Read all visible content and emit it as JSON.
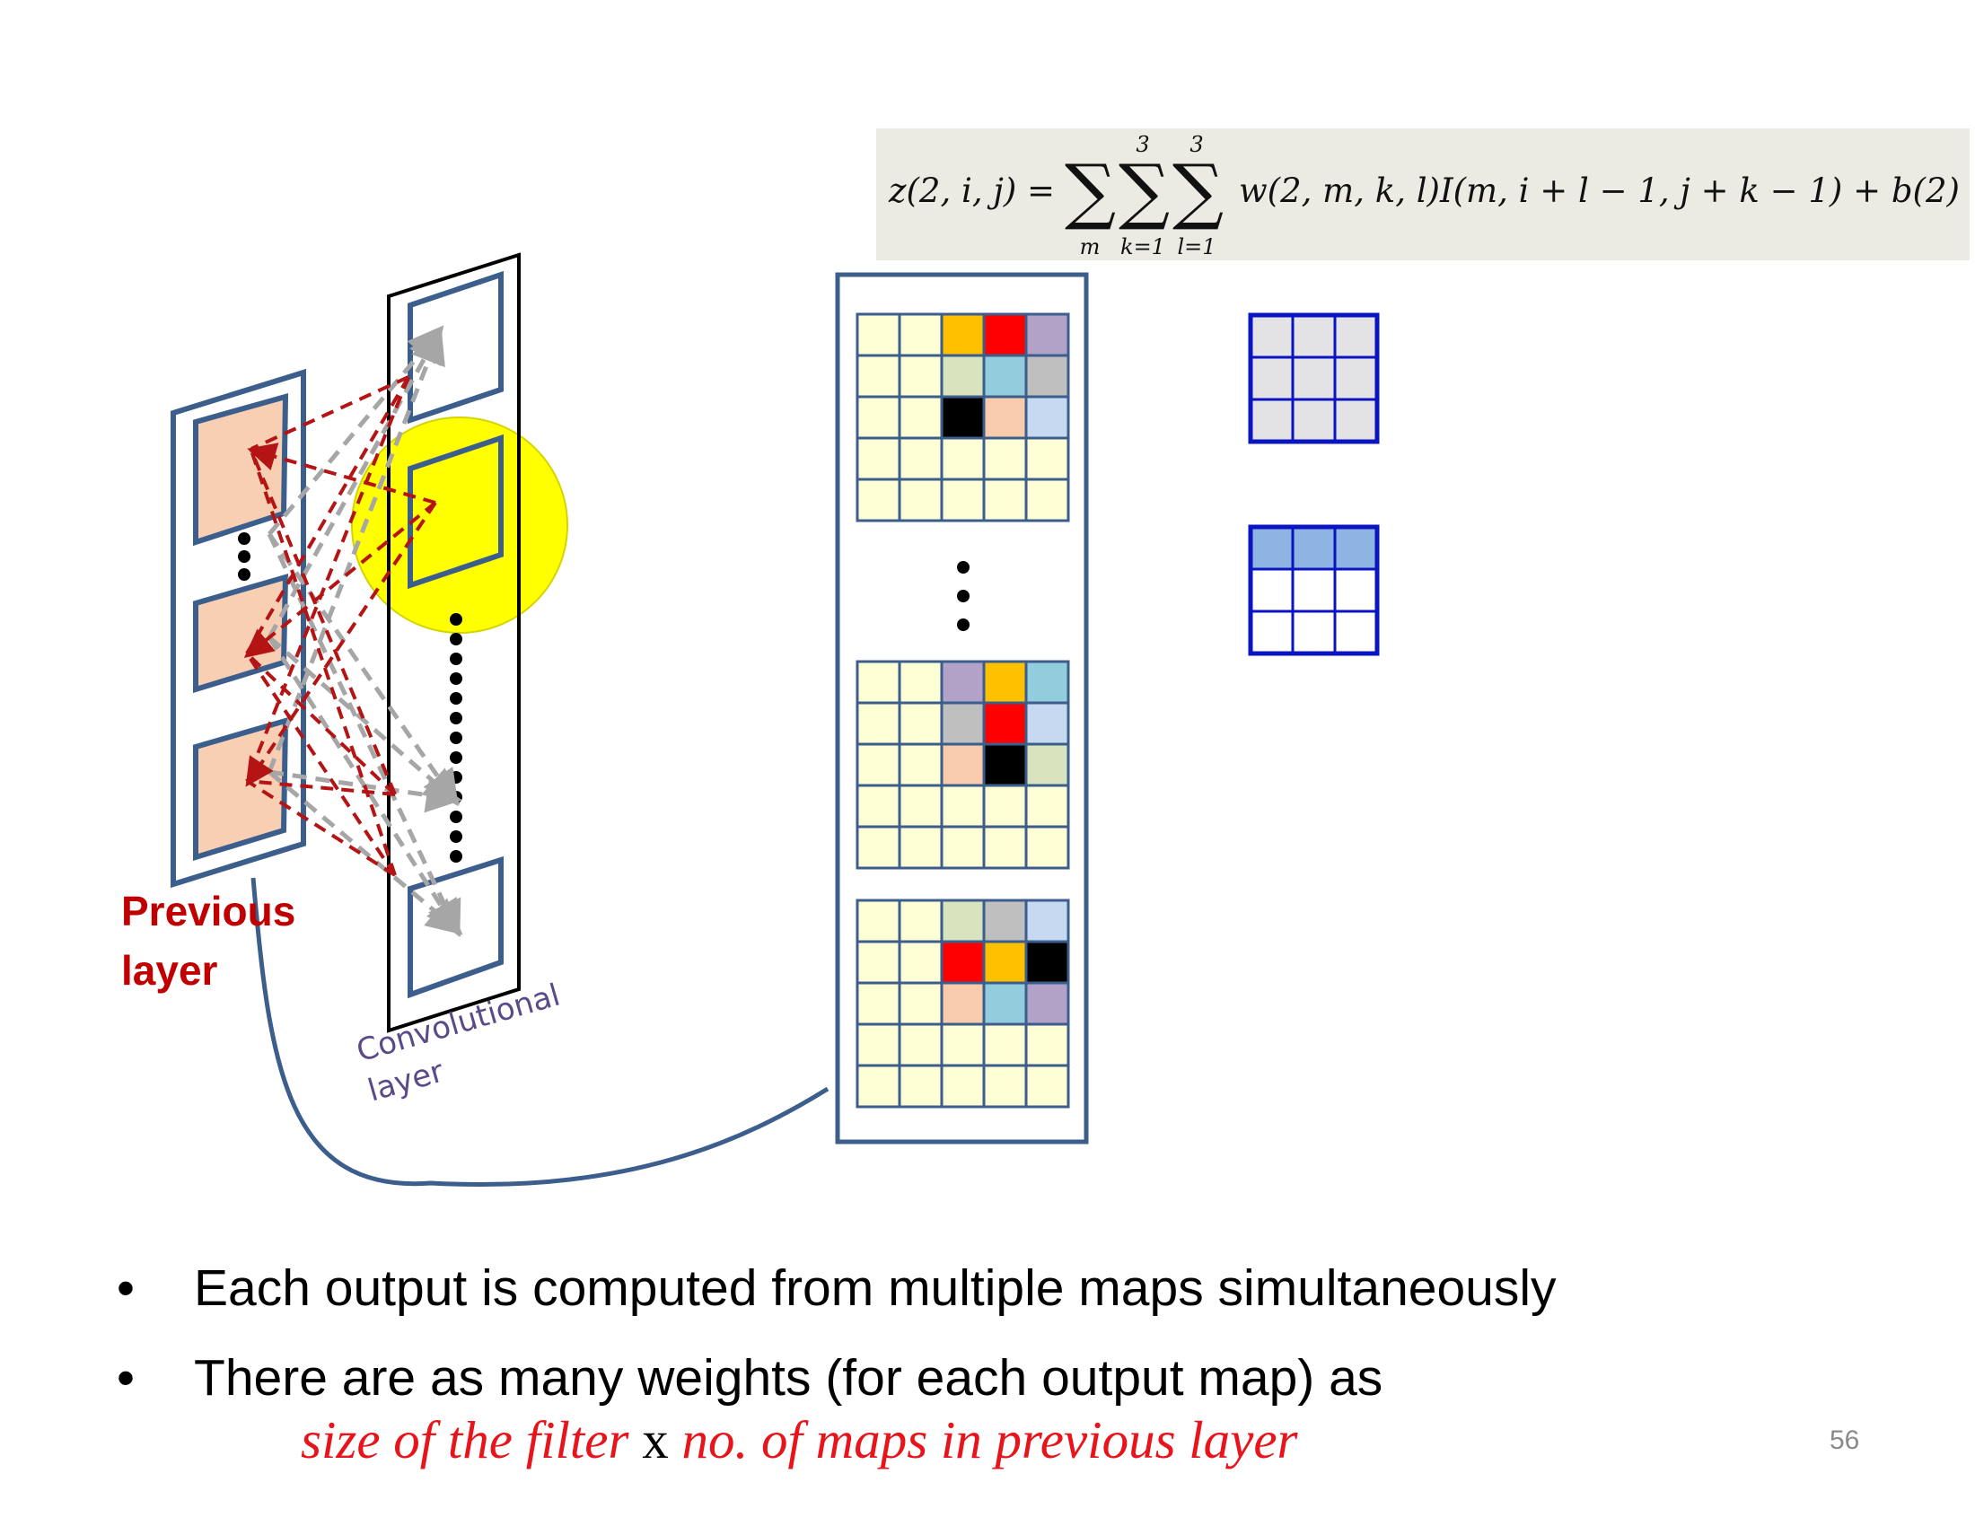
{
  "formula": {
    "lhs": "z(2, i, j) =",
    "sum1_bottom": "m",
    "sum2_top": "3",
    "sum2_bottom": "k=1",
    "sum3_top": "3",
    "sum3_bottom": "l=1",
    "rhs": "w(2, m, k, l)I(m, i + l − 1, j + k − 1) + b(2)"
  },
  "labels": {
    "previous_layer_line1": "Previous",
    "previous_layer_line2": "layer",
    "conv_layer_line1": "Convolutional",
    "conv_layer_line2": "layer"
  },
  "bullets": [
    "Each output is computed from multiple maps simultaneously",
    "There are as many weights (for each output map) as"
  ],
  "expression": {
    "part1": "size of the filter",
    "times": "x",
    "part2": "no. of maps in previous layer"
  },
  "page_number": "56",
  "colors": {
    "frame_blue": "#3b5e8c",
    "map_fill": "#f8cfb3",
    "dash_red": "#b41414",
    "dash_gray": "#a6a6a6",
    "highlight_yellow": "#ffff00",
    "grid_cell": "#ffffd5",
    "filter_blue": "#0a14c0",
    "filter_fill": "#e3e3e6",
    "filter_row": "#8eb4e3",
    "text_red": "#e8141b",
    "label_red": "#c00000",
    "label_purple": "#5a4a8a"
  },
  "grids": [
    {
      "name": "grid-top",
      "colored": [
        [
          0,
          2,
          "#ffc000"
        ],
        [
          0,
          3,
          "#ff0000"
        ],
        [
          0,
          4,
          "#b3a2c7"
        ],
        [
          1,
          2,
          "#d7e4bd"
        ],
        [
          1,
          3,
          "#93cddd"
        ],
        [
          1,
          4,
          "#bfbfbf"
        ],
        [
          2,
          2,
          "#000000"
        ],
        [
          2,
          3,
          "#f8cbad"
        ],
        [
          2,
          4,
          "#c6d9f1"
        ]
      ]
    },
    {
      "name": "grid-middle",
      "colored": [
        [
          0,
          2,
          "#b3a2c7"
        ],
        [
          0,
          3,
          "#ffc000"
        ],
        [
          0,
          4,
          "#93cddd"
        ],
        [
          1,
          2,
          "#bfbfbf"
        ],
        [
          1,
          3,
          "#ff0000"
        ],
        [
          1,
          4,
          "#c6d9f1"
        ],
        [
          2,
          2,
          "#f8cbad"
        ],
        [
          2,
          3,
          "#000000"
        ],
        [
          2,
          4,
          "#d7e4bd"
        ]
      ]
    },
    {
      "name": "grid-bottom",
      "colored": [
        [
          0,
          2,
          "#d7e4bd"
        ],
        [
          0,
          3,
          "#bfbfbf"
        ],
        [
          0,
          4,
          "#c6d9f1"
        ],
        [
          1,
          2,
          "#ff0000"
        ],
        [
          1,
          3,
          "#ffc000"
        ],
        [
          1,
          4,
          "#000000"
        ],
        [
          2,
          2,
          "#f8cbad"
        ],
        [
          2,
          3,
          "#93cddd"
        ],
        [
          2,
          4,
          "#b3a2c7"
        ]
      ]
    }
  ]
}
